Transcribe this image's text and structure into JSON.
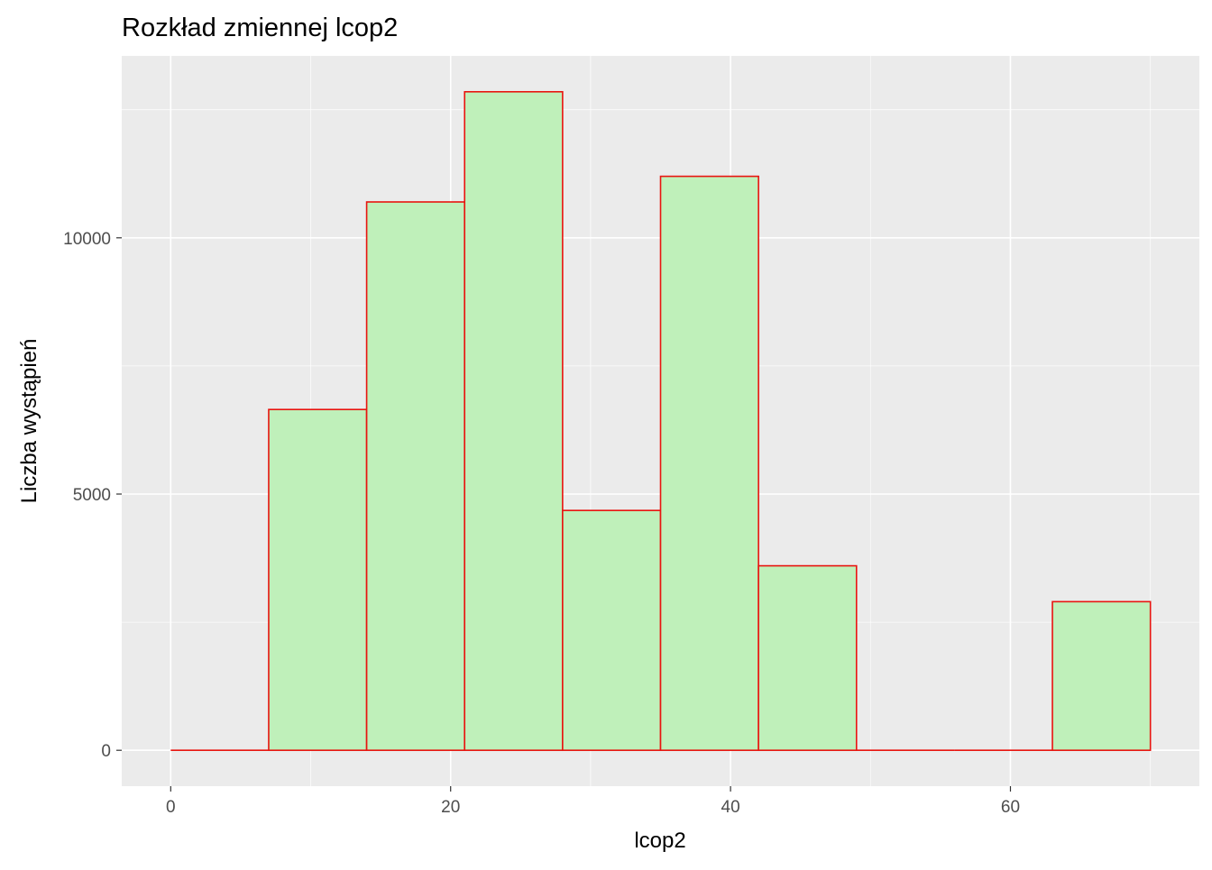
{
  "chart_data": {
    "type": "bar",
    "title": "Rozkład zmiennej lcop2",
    "xlabel": "lcop2",
    "ylabel": "Liczba wystąpień",
    "xlim": [
      -3.5,
      73.5
    ],
    "ylim": [
      -700,
      13550
    ],
    "x_ticks": [
      0,
      20,
      40,
      60
    ],
    "x_tick_labels": [
      "0",
      "20",
      "40",
      "60"
    ],
    "x_minor_ticks": [
      10,
      30,
      50,
      70
    ],
    "y_ticks": [
      0,
      5000,
      10000
    ],
    "y_tick_labels": [
      "0",
      "5000",
      "10000"
    ],
    "y_minor_ticks": [
      2500,
      7500,
      12500
    ],
    "bins": [
      {
        "x0": 0,
        "x1": 7,
        "count": 0
      },
      {
        "x0": 7,
        "x1": 14,
        "count": 6650
      },
      {
        "x0": 14,
        "x1": 21,
        "count": 10700
      },
      {
        "x0": 21,
        "x1": 28,
        "count": 12850
      },
      {
        "x0": 28,
        "x1": 35,
        "count": 4680
      },
      {
        "x0": 35,
        "x1": 42,
        "count": 11200
      },
      {
        "x0": 42,
        "x1": 49,
        "count": 3600
      },
      {
        "x0": 49,
        "x1": 56,
        "count": 0
      },
      {
        "x0": 56,
        "x1": 63,
        "count": 0
      },
      {
        "x0": 63,
        "x1": 70,
        "count": 2900
      }
    ],
    "colors": {
      "panel_background": "#EBEBEB",
      "grid": "#FFFFFF",
      "bar_fill": "#BFF0BA",
      "bar_outline": "#E8140F",
      "tick_text": "#4D4D4D",
      "tick_mark": "#333333",
      "title_text": "#000000"
    },
    "grid": true,
    "legend": "none"
  }
}
